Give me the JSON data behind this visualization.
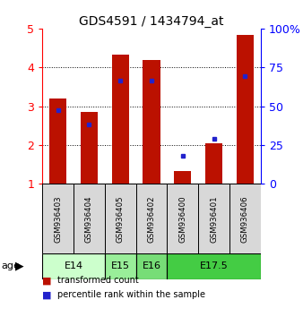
{
  "title": "GDS4591 / 1434794_at",
  "samples": [
    "GSM936403",
    "GSM936404",
    "GSM936405",
    "GSM936402",
    "GSM936400",
    "GSM936401",
    "GSM936406"
  ],
  "red_values": [
    3.2,
    2.85,
    4.32,
    4.18,
    1.32,
    2.05,
    4.83
  ],
  "blue_values": [
    2.9,
    2.52,
    3.65,
    3.65,
    1.73,
    2.15,
    3.78
  ],
  "ylim": [
    1,
    5
  ],
  "yticks": [
    1,
    2,
    3,
    4,
    5
  ],
  "right_yticks": [
    0,
    25,
    50,
    75,
    100
  ],
  "right_ylabels": [
    "0",
    "25",
    "50",
    "75",
    "100%"
  ],
  "age_groups": [
    {
      "label": "E14",
      "start": 0,
      "end": 2,
      "color": "#ccffcc"
    },
    {
      "label": "E15",
      "start": 2,
      "end": 3,
      "color": "#99ee99"
    },
    {
      "label": "E16",
      "start": 3,
      "end": 4,
      "color": "#77dd77"
    },
    {
      "label": "E17.5",
      "start": 4,
      "end": 7,
      "color": "#44cc44"
    }
  ],
  "bar_color": "#bb1100",
  "dot_color": "#2222cc",
  "bar_width": 0.55,
  "bg_color": "#d8d8d8",
  "plot_bg": "#ffffff",
  "legend_labels": [
    "transformed count",
    "percentile rank within the sample"
  ]
}
